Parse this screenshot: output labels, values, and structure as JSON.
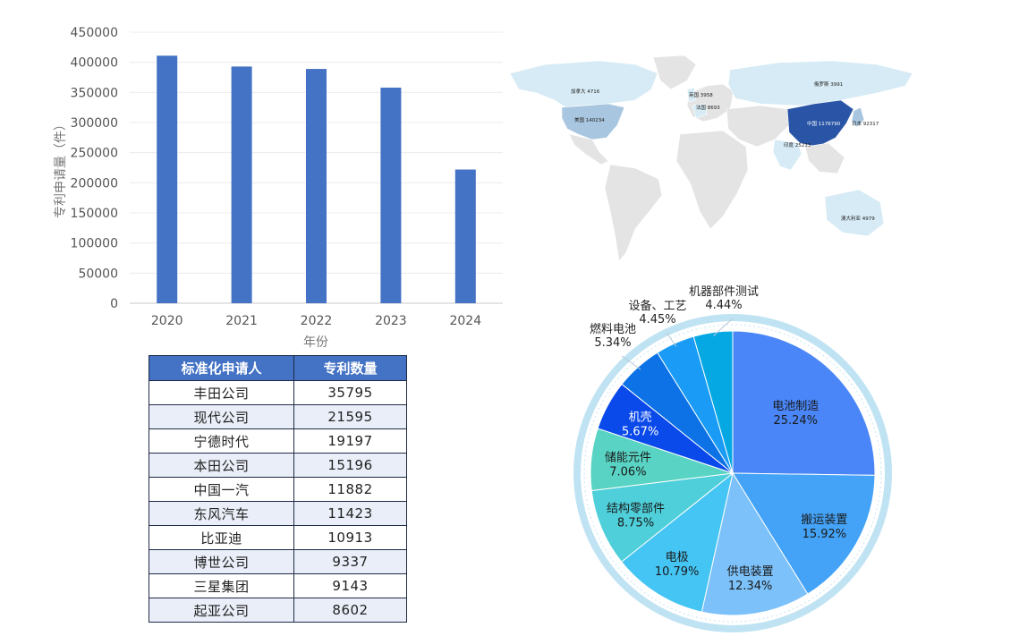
{
  "chart_data": [
    {
      "type": "bar",
      "categories": [
        "2020",
        "2021",
        "2022",
        "2023",
        "2024"
      ],
      "values": [
        411000,
        393000,
        389000,
        358000,
        222000
      ],
      "xlabel": "年份",
      "ylabel": "专利申请量（件）",
      "ylim": [
        0,
        450000
      ],
      "yticks": [
        0,
        50000,
        100000,
        150000,
        200000,
        250000,
        300000,
        350000,
        400000,
        450000
      ],
      "grid": true,
      "color": "#4472c4"
    },
    {
      "type": "map",
      "regions": [
        {
          "label": "加拿大 4716",
          "value": 4716
        },
        {
          "label": "美国 140234",
          "value": 140234
        },
        {
          "label": "英国 3958",
          "value": 3958
        },
        {
          "label": "法国 8693",
          "value": 8693
        },
        {
          "label": "俄罗斯 3991",
          "value": 3991
        },
        {
          "label": "中国 1176790",
          "value": 1176790
        },
        {
          "label": "日本 92317",
          "value": 92317
        },
        {
          "label": "印度 25233",
          "value": 25233
        },
        {
          "label": "澳大利亚 4979",
          "value": 4979
        }
      ],
      "colors": {
        "high": "#2a55a6",
        "mid": "#a9c6e0",
        "low": "#d6ebf5",
        "none": "#e4e4e4"
      }
    },
    {
      "type": "pie",
      "slices": [
        {
          "label": "电池制造",
          "pct": "25.24%",
          "value": 25.24,
          "color": "#4a86f7"
        },
        {
          "label": "搬运装置",
          "pct": "15.92%",
          "value": 15.92,
          "color": "#44a3f7"
        },
        {
          "label": "供电装置",
          "pct": "12.34%",
          "value": 12.34,
          "color": "#7cc1f9"
        },
        {
          "label": "电极",
          "pct": "10.79%",
          "value": 10.79,
          "color": "#45c5f3"
        },
        {
          "label": "结构零部件",
          "pct": "8.75%",
          "value": 8.75,
          "color": "#4ecfd9"
        },
        {
          "label": "储能元件",
          "pct": "7.06%",
          "value": 7.06,
          "color": "#59d3c3"
        },
        {
          "label": "机壳",
          "pct": "5.67%",
          "value": 5.67,
          "color": "#0a49ea"
        },
        {
          "label": "燃料电池",
          "pct": "5.34%",
          "value": 5.34,
          "color": "#0c72e6"
        },
        {
          "label": "设备、工艺",
          "pct": "4.45%",
          "value": 4.45,
          "color": "#1a9cf6"
        },
        {
          "label": "机器部件测试",
          "pct": "4.44%",
          "value": 4.44,
          "color": "#06a8e4"
        }
      ],
      "ring_color": "#bfe3f3"
    }
  ],
  "table": {
    "headers": [
      "标准化申请人",
      "专利数量"
    ],
    "rows": [
      [
        "丰田公司",
        "35795"
      ],
      [
        "现代公司",
        "21595"
      ],
      [
        "宁德时代",
        "19197"
      ],
      [
        "本田公司",
        "15196"
      ],
      [
        "中国一汽",
        "11882"
      ],
      [
        "东风汽车",
        "11423"
      ],
      [
        "比亚迪",
        "10913"
      ],
      [
        "博世公司",
        "9337"
      ],
      [
        "三星集团",
        "9143"
      ],
      [
        "起亚公司",
        "8602"
      ]
    ]
  }
}
